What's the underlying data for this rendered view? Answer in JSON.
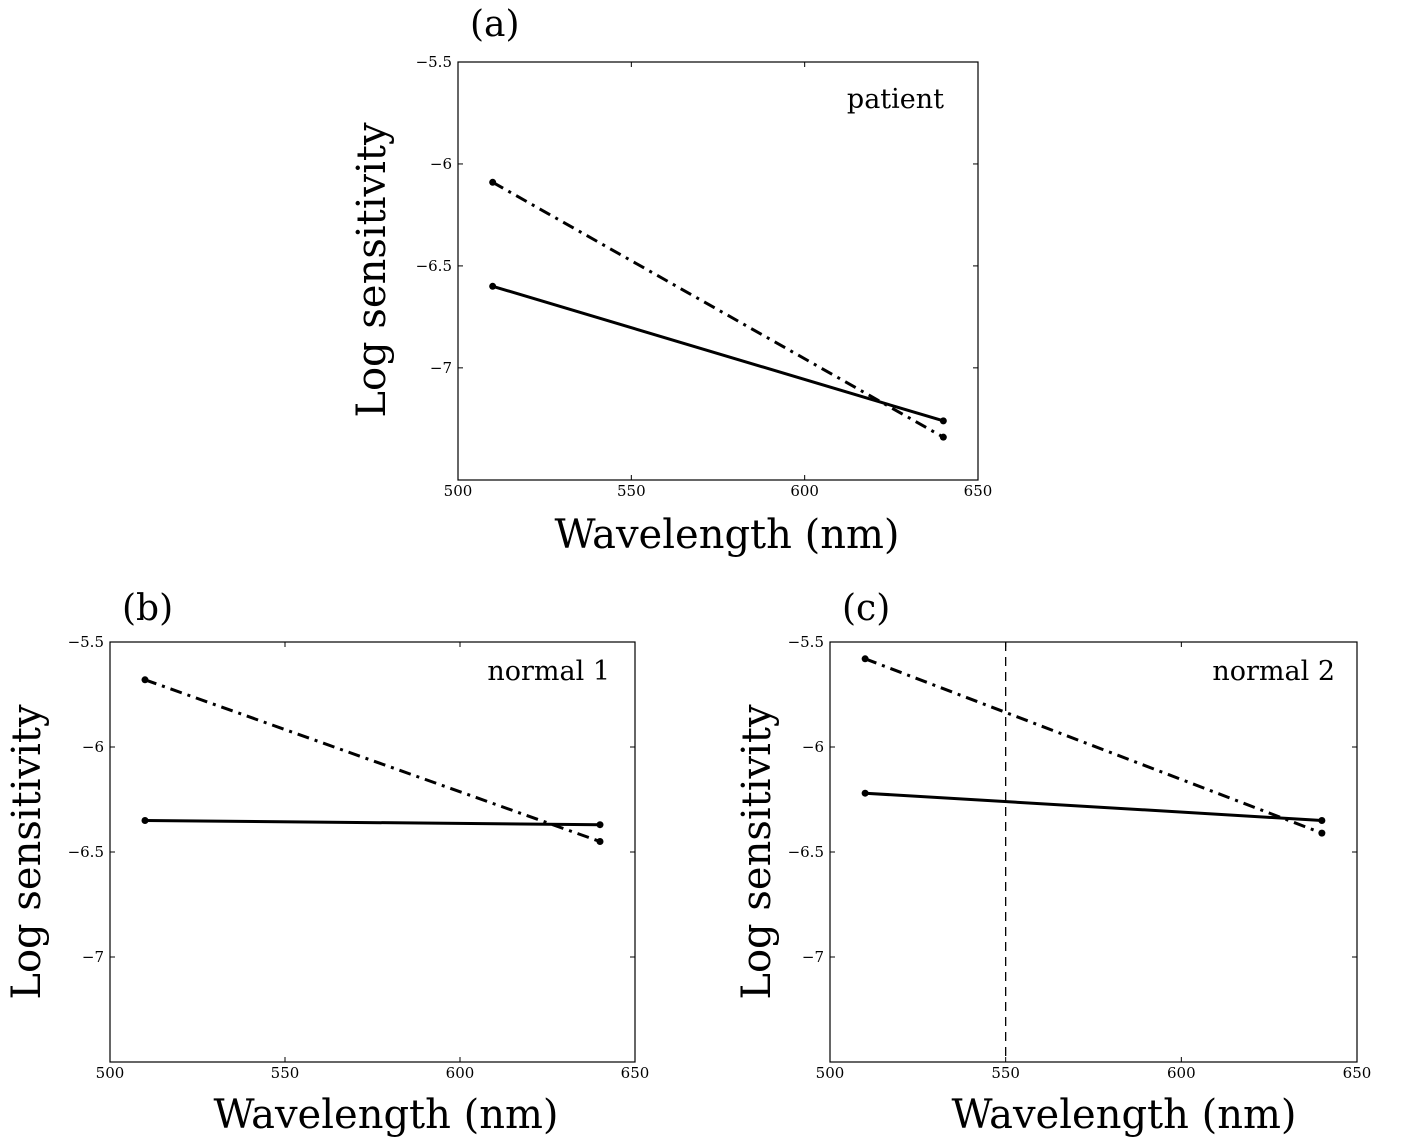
{
  "chart_data": [
    {
      "type": "line",
      "panel": "(a)",
      "annotation": "patient",
      "xlabel": "Wavelength (nm)",
      "ylabel": "Log sensitivity",
      "xlim": [
        500,
        650
      ],
      "ylim": [
        -7.55,
        -5.5
      ],
      "xticks": [
        500,
        550,
        600,
        650
      ],
      "xtick_labels": [
        "500",
        "550",
        "600",
        "650"
      ],
      "yticks": [
        -5.5,
        -6,
        -6.5,
        -7
      ],
      "ytick_labels": [
        "−5.5",
        "−6",
        "−6.5",
        "−7"
      ],
      "vline": null,
      "series": [
        {
          "name": "solid",
          "style": "solid",
          "x": [
            510,
            640
          ],
          "y": [
            -6.6,
            -7.26
          ]
        },
        {
          "name": "dashed",
          "style": "dashdot",
          "x": [
            510,
            640
          ],
          "y": [
            -6.09,
            -7.34
          ]
        }
      ]
    },
    {
      "type": "line",
      "panel": "(b)",
      "annotation": "normal 1",
      "xlabel": "Wavelength (nm)",
      "ylabel": "Log sensitivity",
      "xlim": [
        500,
        650
      ],
      "ylim": [
        -7.5,
        -5.5
      ],
      "xticks": [
        500,
        550,
        600,
        650
      ],
      "xtick_labels": [
        "500",
        "550",
        "600",
        "650"
      ],
      "yticks": [
        -5.5,
        -6,
        -6.5,
        -7
      ],
      "ytick_labels": [
        "−5.5",
        "−6",
        "−6.5",
        "−7"
      ],
      "vline": null,
      "series": [
        {
          "name": "solid",
          "style": "solid",
          "x": [
            510,
            640
          ],
          "y": [
            -6.35,
            -6.37
          ]
        },
        {
          "name": "dashed",
          "style": "dashdot",
          "x": [
            510,
            640
          ],
          "y": [
            -5.68,
            -6.45
          ]
        }
      ]
    },
    {
      "type": "line",
      "panel": "(c)",
      "annotation": "normal 2",
      "xlabel": "Wavelength (nm)",
      "ylabel": "Log sensitivity",
      "xlim": [
        500,
        650
      ],
      "ylim": [
        -7.5,
        -5.5
      ],
      "xticks": [
        500,
        550,
        600,
        650
      ],
      "xtick_labels": [
        "500",
        "550",
        "600",
        "650"
      ],
      "yticks": [
        -5.5,
        -6,
        -6.5,
        -7
      ],
      "ytick_labels": [
        "−5.5",
        "−6",
        "−6.5",
        "−7"
      ],
      "vline": 550,
      "series": [
        {
          "name": "solid",
          "style": "solid",
          "x": [
            510,
            640
          ],
          "y": [
            -6.22,
            -6.35
          ]
        },
        {
          "name": "dashed",
          "style": "dashdot",
          "x": [
            510,
            640
          ],
          "y": [
            -5.58,
            -6.41
          ]
        }
      ]
    }
  ]
}
